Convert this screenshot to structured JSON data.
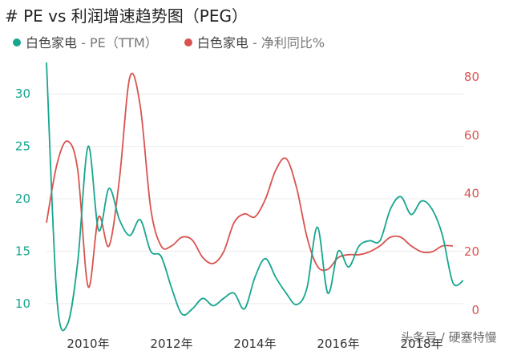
{
  "title": "# PE vs 利润增速趋势图（PEG）",
  "legend": [
    {
      "name": "白色家电",
      "metric": " - PE（TTM）",
      "color": "#17a68f"
    },
    {
      "name": "白色家电",
      "metric": " - 净利同比%",
      "color": "#d9534f"
    }
  ],
  "watermark": "头条号 / 硬塞特慢",
  "chart_data": {
    "type": "line",
    "x_ticks": [
      "2010年",
      "2012年",
      "2014年",
      "2016年",
      "2018年"
    ],
    "x_tick_values": [
      2010,
      2012,
      2014,
      2016,
      2018
    ],
    "xlim": [
      2009.0,
      2019.0
    ],
    "left_axis": {
      "ticks": [
        10,
        15,
        20,
        25,
        30
      ],
      "ylim": [
        8,
        33
      ],
      "color": "#17a68f"
    },
    "right_axis": {
      "ticks": [
        0,
        20,
        40,
        60,
        80
      ],
      "ylim": [
        -5,
        85
      ],
      "color": "#d9534f"
    },
    "grid": true,
    "series": [
      {
        "name": "白色家电 - PE（TTM）",
        "axis": "left",
        "color": "#17a68f",
        "x": [
          2009.0,
          2009.25,
          2009.5,
          2009.75,
          2010.0,
          2010.25,
          2010.5,
          2010.75,
          2011.0,
          2011.25,
          2011.5,
          2011.75,
          2012.0,
          2012.25,
          2012.5,
          2012.75,
          2013.0,
          2013.25,
          2013.5,
          2013.75,
          2014.0,
          2014.25,
          2014.5,
          2014.75,
          2015.0,
          2015.25,
          2015.5,
          2015.75,
          2016.0,
          2016.25,
          2016.5,
          2016.75,
          2017.0,
          2017.25,
          2017.5,
          2017.75,
          2018.0,
          2018.25,
          2018.5,
          2018.75,
          2019.0
        ],
        "values": [
          33.0,
          10.5,
          8.0,
          14.0,
          25.0,
          17.0,
          21.0,
          18.0,
          16.5,
          18.0,
          15.0,
          14.5,
          11.5,
          9.0,
          9.5,
          10.5,
          9.8,
          10.5,
          11.0,
          9.5,
          12.5,
          14.3,
          12.5,
          11.0,
          9.9,
          11.5,
          17.3,
          11.0,
          15.0,
          13.5,
          15.5,
          16.0,
          16.0,
          19.0,
          20.2,
          18.5,
          19.8,
          19.0,
          16.5,
          12.0,
          12.2
        ]
      },
      {
        "name": "白色家电 - 净利同比%",
        "axis": "right",
        "color": "#d9534f",
        "x": [
          2009.0,
          2009.25,
          2009.5,
          2009.75,
          2010.0,
          2010.25,
          2010.5,
          2010.75,
          2011.0,
          2011.25,
          2011.5,
          2011.75,
          2012.0,
          2012.25,
          2012.5,
          2012.75,
          2013.0,
          2013.25,
          2013.5,
          2013.75,
          2014.0,
          2014.25,
          2014.5,
          2014.75,
          2015.0,
          2015.25,
          2015.5,
          2015.75,
          2016.0,
          2016.25,
          2016.5,
          2016.75,
          2017.0,
          2017.25,
          2017.5,
          2017.75,
          2018.0,
          2018.25,
          2018.5,
          2018.75
        ],
        "values": [
          30,
          50,
          58,
          48,
          8,
          32,
          22,
          45,
          80,
          70,
          35,
          22,
          22,
          25,
          24,
          18,
          16,
          20,
          30,
          33,
          32,
          38,
          48,
          52,
          42,
          25,
          15,
          14,
          18,
          19,
          19,
          20,
          22,
          25,
          25,
          22,
          20,
          20,
          22,
          22
        ]
      }
    ]
  }
}
